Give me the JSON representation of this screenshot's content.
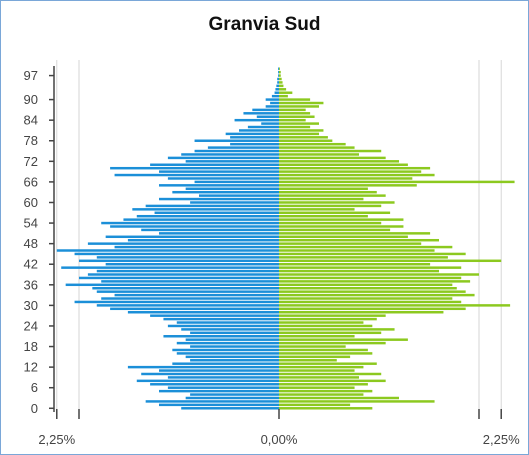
{
  "chart_data": {
    "type": "bar",
    "orientation": "horizontal",
    "title": "Granvia Sud",
    "x_tick_labels": [
      "2,25%",
      "0,00%",
      "2,25%"
    ],
    "y_tick_labels": [
      "0",
      "6",
      "12",
      "18",
      "24",
      "30",
      "36",
      "42",
      "48",
      "54",
      "60",
      "66",
      "72",
      "78",
      "84",
      "90",
      "97"
    ],
    "x_range_percent": [
      -2.5,
      2.5
    ],
    "ages_min": 0,
    "ages_max": 100,
    "grid": false,
    "colors": {
      "left_series": "#1b8fd8",
      "right_series": "#8cc91f",
      "axis": "#444444",
      "gridline": "#d6d6d6"
    },
    "series": [
      {
        "side": "left",
        "values": [
          1.1,
          1.35,
          1.5,
          1.05,
          1.0,
          1.35,
          1.25,
          1.45,
          1.6,
          1.25,
          1.55,
          1.35,
          1.7,
          1.2,
          1.0,
          1.05,
          1.15,
          1.2,
          1.0,
          1.15,
          1.05,
          1.3,
          1.0,
          1.1,
          1.25,
          1.15,
          1.3,
          1.45,
          1.7,
          1.9,
          2.05,
          2.3,
          2.0,
          1.85,
          2.05,
          2.1,
          2.4,
          2.0,
          2.25,
          2.15,
          2.05,
          2.45,
          1.95,
          2.25,
          2.05,
          2.3,
          2.5,
          1.85,
          2.15,
          1.7,
          1.95,
          1.35,
          1.55,
          1.9,
          2.0,
          1.75,
          1.6,
          1.4,
          1.65,
          1.5,
          1.0,
          1.35,
          0.9,
          1.2,
          1.05,
          1.35,
          0.95,
          1.25,
          1.85,
          1.35,
          1.9,
          1.45,
          1.05,
          1.25,
          1.1,
          0.95,
          0.8,
          0.55,
          0.95,
          0.55,
          0.6,
          0.45,
          0.35,
          0.2,
          0.5,
          0.25,
          0.4,
          0.3,
          0.15,
          0.1,
          0.15,
          0.08,
          0.05,
          0.04,
          0.03,
          0.02,
          0.02,
          0.01,
          0.01,
          0.01
        ]
      },
      {
        "side": "right",
        "values": [
          1.05,
          0.8,
          1.75,
          1.35,
          0.95,
          1.05,
          0.85,
          1.0,
          1.2,
          0.9,
          1.15,
          0.85,
          0.95,
          1.1,
          0.65,
          0.8,
          1.05,
          1.0,
          0.75,
          1.2,
          1.45,
          0.85,
          1.15,
          1.3,
          1.05,
          0.95,
          1.1,
          1.2,
          1.85,
          2.1,
          2.6,
          2.05,
          1.95,
          2.2,
          2.1,
          2.0,
          1.95,
          2.15,
          2.05,
          2.25,
          1.8,
          2.05,
          1.7,
          2.5,
          1.9,
          2.1,
          1.75,
          1.95,
          1.6,
          1.8,
          1.45,
          1.7,
          1.25,
          1.4,
          1.15,
          1.4,
          1.0,
          1.25,
          0.85,
          1.15,
          1.3,
          0.95,
          1.2,
          1.1,
          1.0,
          1.55,
          2.65,
          1.5,
          1.75,
          1.6,
          1.7,
          1.45,
          1.35,
          1.2,
          0.9,
          1.15,
          0.85,
          0.75,
          0.6,
          0.55,
          0.45,
          0.5,
          0.35,
          0.45,
          0.3,
          0.4,
          0.35,
          0.3,
          0.45,
          0.5,
          0.35,
          0.1,
          0.15,
          0.08,
          0.05,
          0.04,
          0.03,
          0.02,
          0.02,
          0.01
        ]
      }
    ]
  }
}
